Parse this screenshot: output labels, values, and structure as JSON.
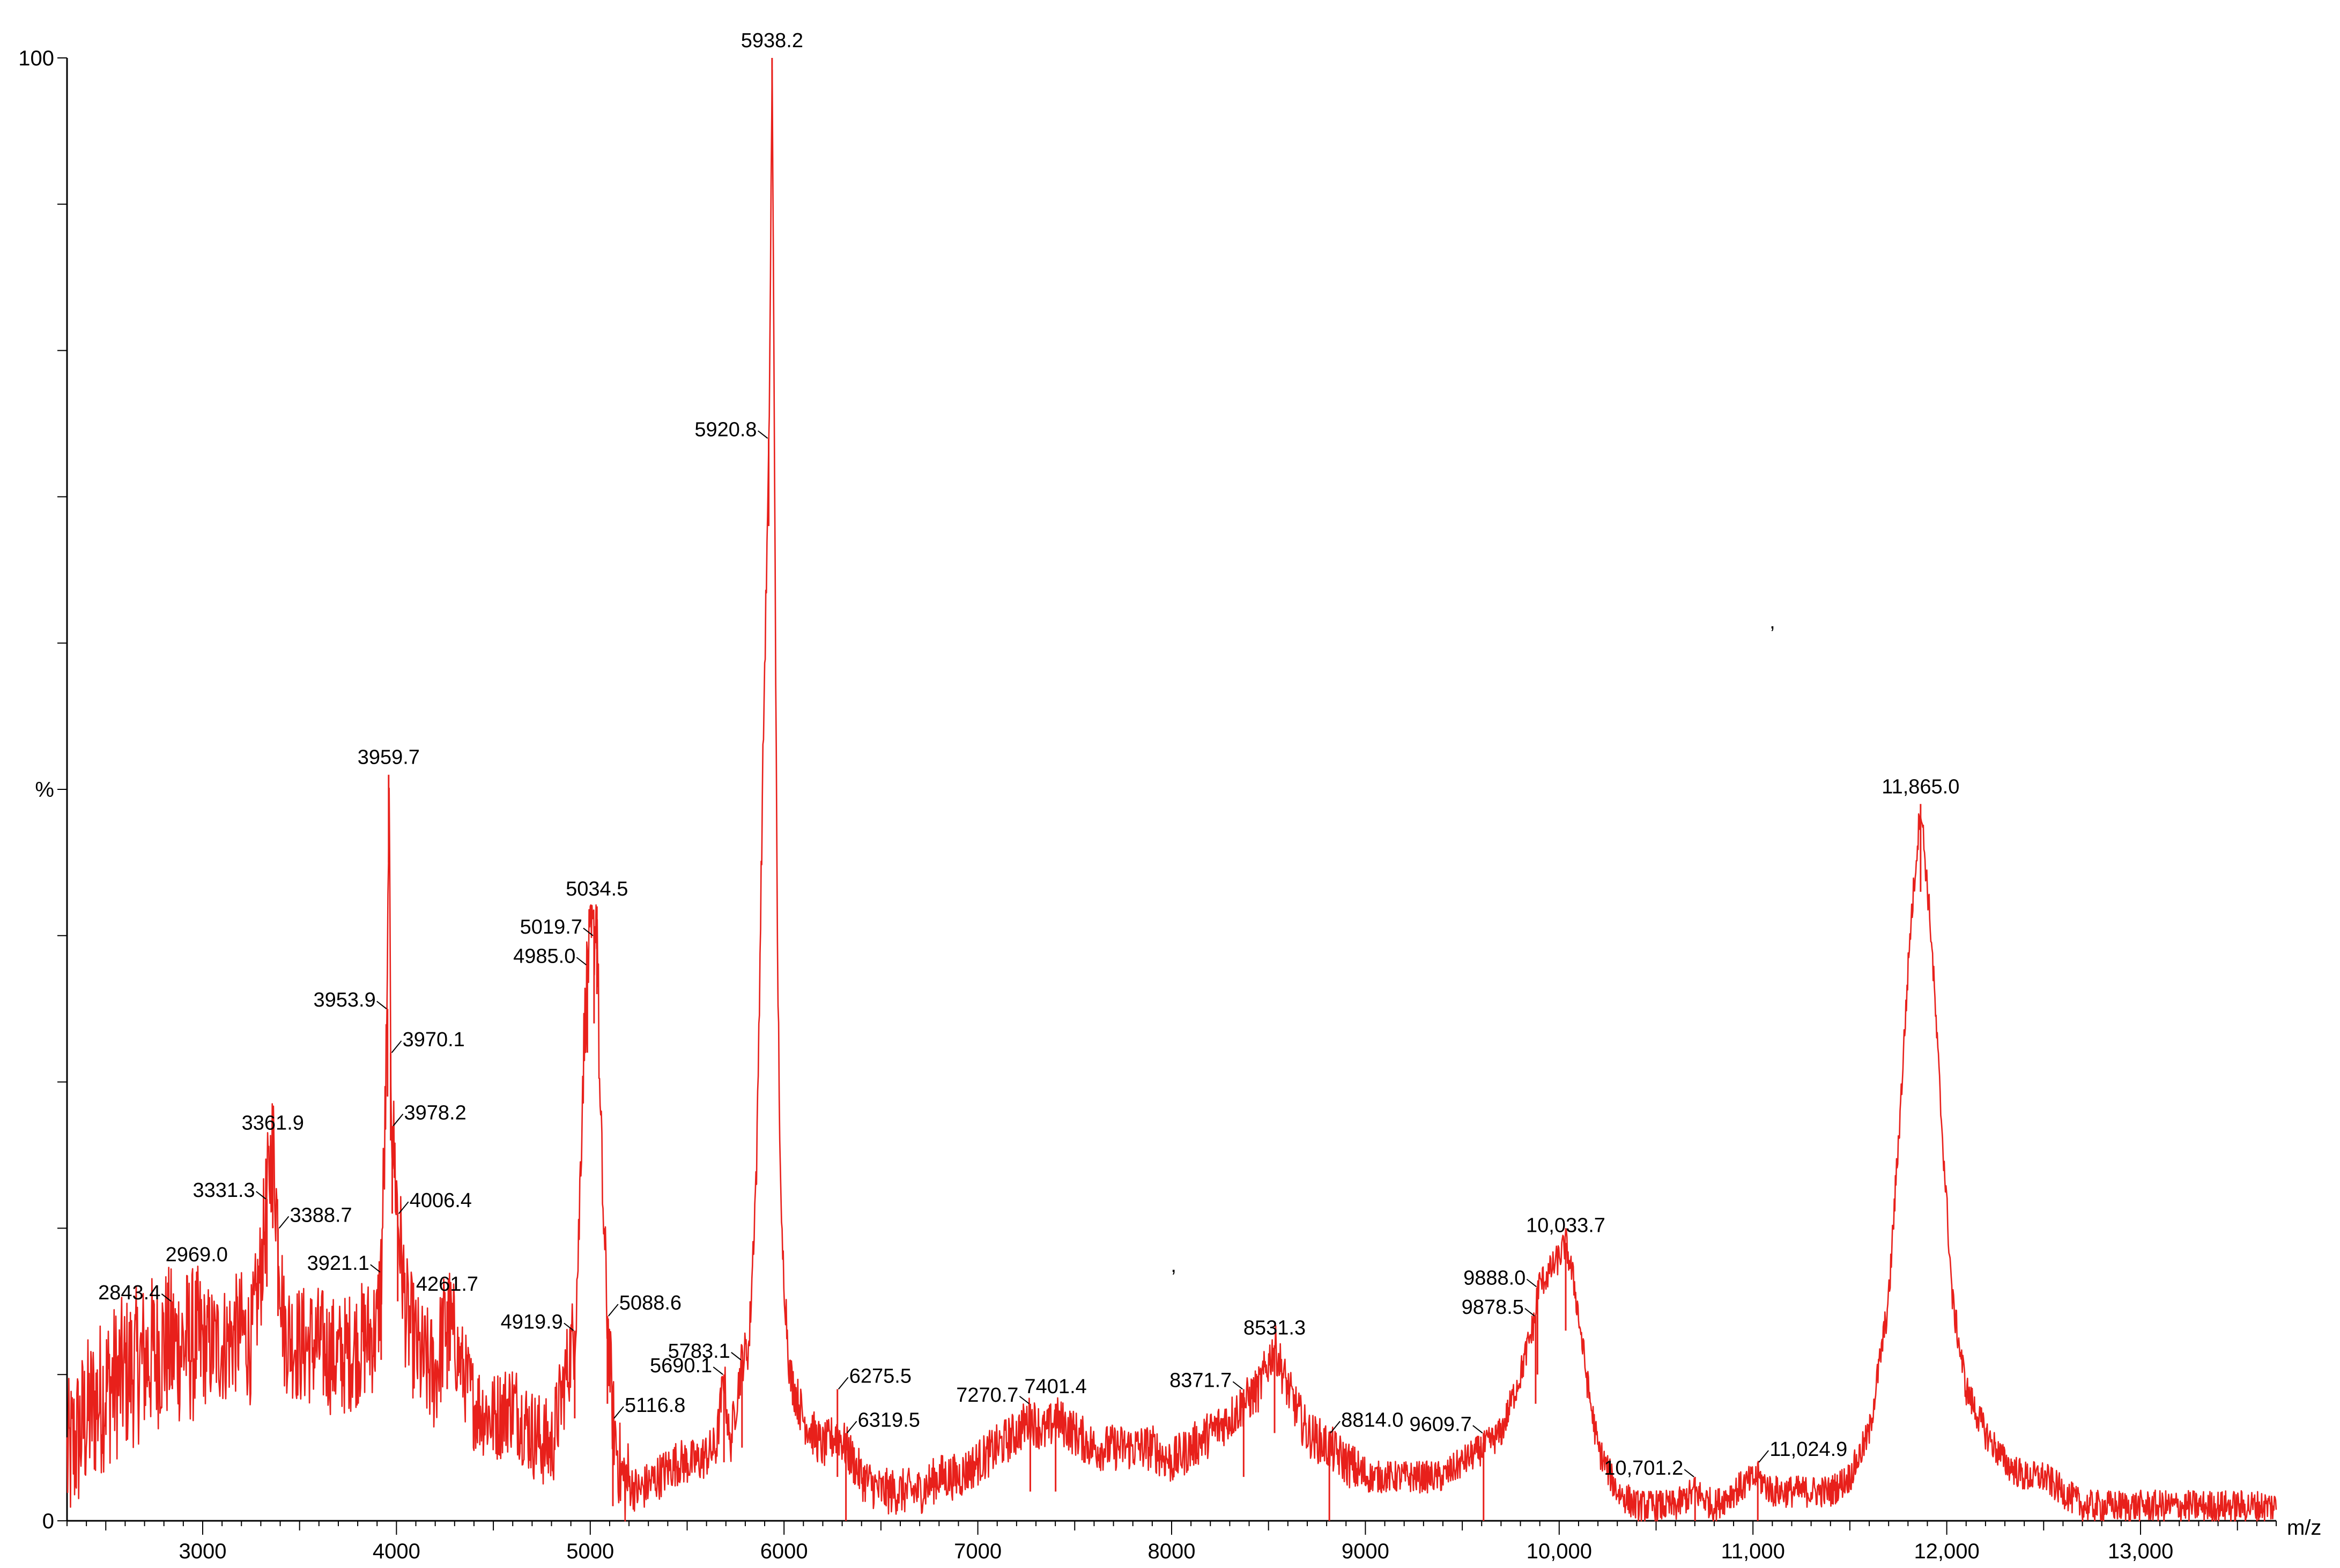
{
  "chart_data": {
    "type": "line",
    "xlabel": "m/z",
    "ylabel": "%",
    "xlim": [
      2300,
      13700
    ],
    "ylim": [
      0,
      100
    ],
    "grid": false,
    "series_color": "#e8201b",
    "x_ticks": [
      {
        "value": 3000,
        "label": "3000"
      },
      {
        "value": 4000,
        "label": "4000"
      },
      {
        "value": 5000,
        "label": "5000"
      },
      {
        "value": 6000,
        "label": "6000"
      },
      {
        "value": 7000,
        "label": "7000"
      },
      {
        "value": 8000,
        "label": "8000"
      },
      {
        "value": 9000,
        "label": "9000"
      },
      {
        "value": 10000,
        "label": "10,000"
      },
      {
        "value": 11000,
        "label": "11,000"
      },
      {
        "value": 12000,
        "label": "12,000"
      },
      {
        "value": 13000,
        "label": "13,000"
      }
    ],
    "y_ticks": [
      {
        "value": 0,
        "label": "0"
      },
      {
        "value": 50,
        "label": "%"
      },
      {
        "value": 100,
        "label": "100"
      }
    ],
    "series": [
      {
        "values": [
          [
            2300,
            4
          ],
          [
            2400,
            7
          ],
          [
            2500,
            9
          ],
          [
            2600,
            10
          ],
          [
            2700,
            11
          ],
          [
            2800,
            12
          ],
          [
            2900,
            12
          ],
          [
            3000,
            12
          ],
          [
            3100,
            12
          ],
          [
            3200,
            13
          ],
          [
            3250,
            12
          ],
          [
            3300,
            17
          ],
          [
            3331.3,
            22
          ],
          [
            3361.9,
            26
          ],
          [
            3388.7,
            20
          ],
          [
            3420,
            13
          ],
          [
            3500,
            12
          ],
          [
            3600,
            12
          ],
          [
            3700,
            11
          ],
          [
            3800,
            12
          ],
          [
            3900,
            13
          ],
          [
            3921.1,
            17
          ],
          [
            3940,
            26
          ],
          [
            3953.9,
            35
          ],
          [
            3959.7,
            51
          ],
          [
            3970.1,
            32
          ],
          [
            3978.2,
            27
          ],
          [
            4006.4,
            21
          ],
          [
            4050,
            14
          ],
          [
            4120,
            11
          ],
          [
            4200,
            10
          ],
          [
            4261.7,
            14
          ],
          [
            4300,
            12
          ],
          [
            4400,
            8
          ],
          [
            4500,
            7
          ],
          [
            4600,
            8
          ],
          [
            4700,
            6
          ],
          [
            4800,
            5
          ],
          [
            4919.9,
            13
          ],
          [
            4940,
            19
          ],
          [
            4960,
            30
          ],
          [
            4985,
            38
          ],
          [
            5000,
            39
          ],
          [
            5019.7,
            40
          ],
          [
            5034.5,
            42
          ],
          [
            5050,
            28
          ],
          [
            5075,
            18
          ],
          [
            5088.6,
            14
          ],
          [
            5116.8,
            7
          ],
          [
            5160,
            3
          ],
          [
            5250,
            2
          ],
          [
            5350,
            3
          ],
          [
            5450,
            4
          ],
          [
            5550,
            4
          ],
          [
            5650,
            5
          ],
          [
            5690.1,
            10
          ],
          [
            5720,
            5
          ],
          [
            5783.1,
            11
          ],
          [
            5820,
            12
          ],
          [
            5860,
            25
          ],
          [
            5895,
            55
          ],
          [
            5920.8,
            72
          ],
          [
            5930,
            85
          ],
          [
            5938.2,
            100
          ],
          [
            5950,
            75
          ],
          [
            5965,
            40
          ],
          [
            5985,
            20
          ],
          [
            6030,
            10
          ],
          [
            6100,
            7
          ],
          [
            6200,
            5
          ],
          [
            6275.5,
            6
          ],
          [
            6319.5,
            5
          ],
          [
            6400,
            3
          ],
          [
            6500,
            2
          ],
          [
            6600,
            2
          ],
          [
            6700,
            2
          ],
          [
            6800,
            3
          ],
          [
            6900,
            3
          ],
          [
            7000,
            4
          ],
          [
            7100,
            5
          ],
          [
            7200,
            6
          ],
          [
            7270.7,
            7
          ],
          [
            7350,
            6
          ],
          [
            7401.4,
            7
          ],
          [
            7500,
            6
          ],
          [
            7600,
            5
          ],
          [
            7700,
            5
          ],
          [
            7800,
            5
          ],
          [
            7900,
            5
          ],
          [
            8000,
            4
          ],
          [
            8100,
            5
          ],
          [
            8200,
            6
          ],
          [
            8300,
            7
          ],
          [
            8371.7,
            8
          ],
          [
            8450,
            9
          ],
          [
            8531.3,
            12
          ],
          [
            8600,
            9
          ],
          [
            8700,
            6
          ],
          [
            8814,
            5
          ],
          [
            8900,
            4
          ],
          [
            9000,
            3
          ],
          [
            9100,
            3
          ],
          [
            9200,
            3
          ],
          [
            9300,
            3
          ],
          [
            9400,
            3
          ],
          [
            9500,
            4
          ],
          [
            9609.7,
            5
          ],
          [
            9700,
            6
          ],
          [
            9800,
            10
          ],
          [
            9878.5,
            14
          ],
          [
            9888,
            16
          ],
          [
            9950,
            17
          ],
          [
            10000,
            18
          ],
          [
            10033.7,
            19
          ],
          [
            10080,
            16
          ],
          [
            10150,
            9
          ],
          [
            10200,
            5
          ],
          [
            10300,
            2
          ],
          [
            10400,
            1
          ],
          [
            10500,
            1
          ],
          [
            10600,
            1
          ],
          [
            10701.2,
            2
          ],
          [
            10800,
            1
          ],
          [
            10900,
            2
          ],
          [
            11024.9,
            3
          ],
          [
            11100,
            2
          ],
          [
            11200,
            2
          ],
          [
            11300,
            2
          ],
          [
            11400,
            2
          ],
          [
            11500,
            3
          ],
          [
            11600,
            6
          ],
          [
            11700,
            15
          ],
          [
            11760,
            28
          ],
          [
            11810,
            40
          ],
          [
            11865,
            49
          ],
          [
            11920,
            40
          ],
          [
            11970,
            28
          ],
          [
            12030,
            15
          ],
          [
            12100,
            9
          ],
          [
            12200,
            6
          ],
          [
            12300,
            4
          ],
          [
            12400,
            3
          ],
          [
            12500,
            3
          ],
          [
            12600,
            2
          ],
          [
            12700,
            1
          ],
          [
            12800,
            1
          ],
          [
            12900,
            1
          ],
          [
            13000,
            1
          ],
          [
            13100,
            1
          ],
          [
            13200,
            1
          ],
          [
            13300,
            1
          ],
          [
            13400,
            1
          ],
          [
            13500,
            1
          ],
          [
            13600,
            1
          ],
          [
            13700,
            1
          ]
        ]
      }
    ],
    "annotations": [
      {
        "text": "5938.2",
        "x": 5938.2,
        "y": 100,
        "align": "center"
      },
      {
        "text": "5920.8",
        "x": 5920.8,
        "y": 74,
        "align": "left",
        "leader": true
      },
      {
        "text": "3959.7",
        "x": 3959.7,
        "y": 51,
        "align": "center"
      },
      {
        "text": "11,865.0",
        "x": 11865,
        "y": 49,
        "align": "center"
      },
      {
        "text": "5034.5",
        "x": 5034.5,
        "y": 42,
        "align": "center"
      },
      {
        "text": "5019.7",
        "x": 5019.7,
        "y": 40,
        "align": "left",
        "leader": true
      },
      {
        "text": "4985.0",
        "x": 4985,
        "y": 38,
        "align": "left",
        "leader": true
      },
      {
        "text": "3953.9",
        "x": 3953.9,
        "y": 35,
        "align": "left",
        "leader": true
      },
      {
        "text": "3970.1",
        "x": 3970.1,
        "y": 32,
        "align": "right",
        "leader": true
      },
      {
        "text": "3978.2",
        "x": 3978.2,
        "y": 27,
        "align": "right",
        "leader": true
      },
      {
        "text": "3361.9",
        "x": 3361.9,
        "y": 26,
        "align": "center"
      },
      {
        "text": "3331.3",
        "x": 3331.3,
        "y": 22,
        "align": "left",
        "leader": true
      },
      {
        "text": "3388.7",
        "x": 3388.7,
        "y": 20,
        "align": "right",
        "leader": true
      },
      {
        "text": "4006.4",
        "x": 4006.4,
        "y": 21,
        "align": "right",
        "leader": true
      },
      {
        "text": "3921.1",
        "x": 3921.1,
        "y": 17,
        "align": "left",
        "leader": true
      },
      {
        "text": "2969.0",
        "x": 2969,
        "y": 17,
        "align": "center"
      },
      {
        "text": "2843.4",
        "x": 2843.4,
        "y": 15,
        "align": "left",
        "leader": true
      },
      {
        "text": "4261.7",
        "x": 4261.7,
        "y": 15,
        "align": "center"
      },
      {
        "text": "4919.9",
        "x": 4919.9,
        "y": 13,
        "align": "left",
        "leader": true
      },
      {
        "text": "5088.6",
        "x": 5088.6,
        "y": 14,
        "align": "right",
        "leader": true
      },
      {
        "text": "10,033.7",
        "x": 10033.7,
        "y": 19,
        "align": "center"
      },
      {
        "text": "9888.0",
        "x": 9888,
        "y": 16,
        "align": "left",
        "leader": true
      },
      {
        "text": "9878.5",
        "x": 9878.5,
        "y": 14,
        "align": "left",
        "leader": true
      },
      {
        "text": "8531.3",
        "x": 8531.3,
        "y": 12,
        "align": "center"
      },
      {
        "text": "5783.1",
        "x": 5783.1,
        "y": 11,
        "align": "left",
        "leader": true
      },
      {
        "text": "5690.1",
        "x": 5690.1,
        "y": 10,
        "align": "left",
        "leader": true
      },
      {
        "text": "6275.5",
        "x": 6275.5,
        "y": 9,
        "align": "right",
        "leader": true
      },
      {
        "text": "8371.7",
        "x": 8371.7,
        "y": 9,
        "align": "left",
        "leader": true
      },
      {
        "text": "7270.7",
        "x": 7270.7,
        "y": 8,
        "align": "left",
        "leader": true
      },
      {
        "text": "7401.4",
        "x": 7401.4,
        "y": 8,
        "align": "center"
      },
      {
        "text": "5116.8",
        "x": 5116.8,
        "y": 7,
        "align": "right",
        "leader": true
      },
      {
        "text": "6319.5",
        "x": 6319.5,
        "y": 6,
        "align": "right",
        "leader": true
      },
      {
        "text": "8814.0",
        "x": 8814,
        "y": 6,
        "align": "right",
        "leader": true
      },
      {
        "text": "9609.7",
        "x": 9609.7,
        "y": 6,
        "align": "left",
        "leader": true
      },
      {
        "text": "10,701.2",
        "x": 10701.2,
        "y": 3,
        "align": "left",
        "leader": true
      },
      {
        "text": "11,024.9",
        "x": 11024.9,
        "y": 4,
        "align": "right",
        "leader": true
      }
    ],
    "stray_marks": [
      {
        "text": ",",
        "x": 11100,
        "y": 61
      },
      {
        "text": ",",
        "x": 8010,
        "y": 17
      }
    ]
  }
}
